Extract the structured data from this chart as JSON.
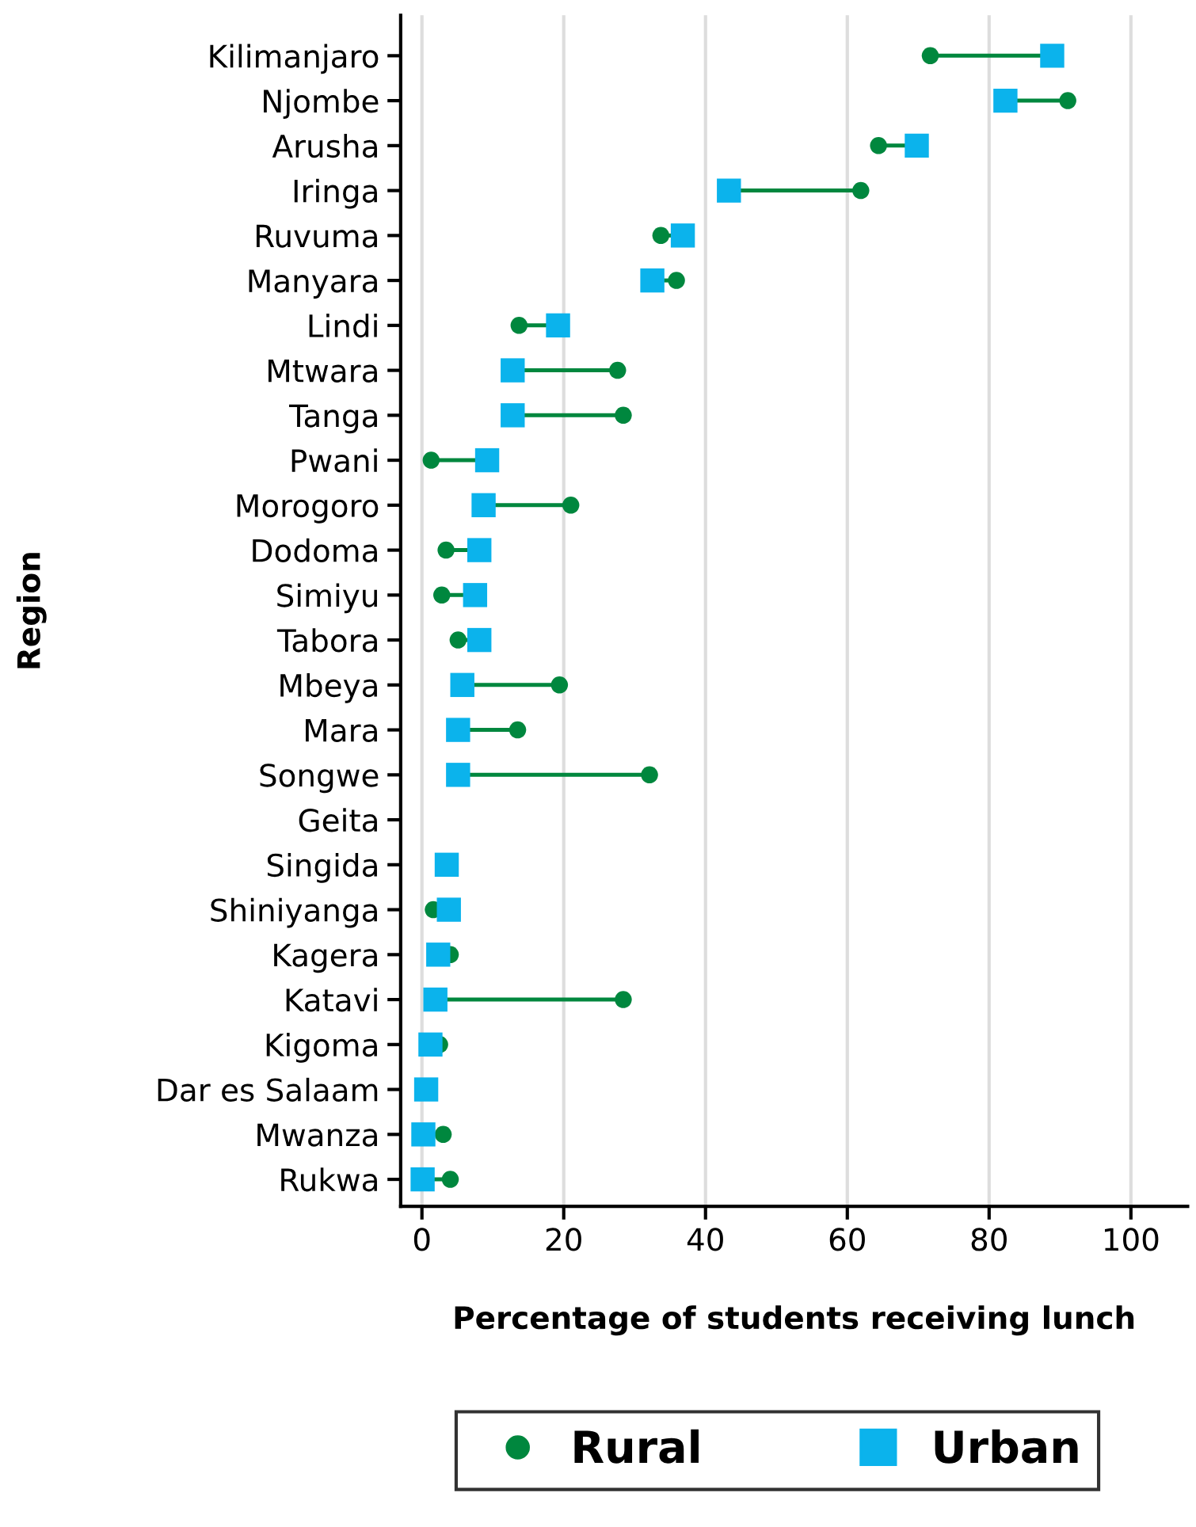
{
  "chart_data": {
    "type": "scatter",
    "orientation": "horizontal",
    "xlabel": "Percentage of students receiving lunch",
    "ylabel": "Region",
    "categories": [
      "Kilimanjaro",
      "Njombe",
      "Arusha",
      "Iringa",
      "Ruvuma",
      "Manyara",
      "Lindi",
      "Mtwara",
      "Tanga",
      "Pwani",
      "Morogoro",
      "Dodoma",
      "Simiyu",
      "Tabora",
      "Mbeya",
      "Mara",
      "Songwe",
      "Geita",
      "Singida",
      "Shiniyanga",
      "Kagera",
      "Katavi",
      "Kigoma",
      "Dar es Salaam",
      "Mwanza",
      "Rukwa"
    ],
    "series": [
      {
        "name": "Rural",
        "color": "#00873e",
        "marker": "circle",
        "values": [
          71.7,
          91.1,
          64.4,
          61.9,
          33.7,
          35.9,
          13.7,
          27.6,
          28.4,
          1.3,
          21.0,
          3.4,
          2.8,
          5.1,
          19.4,
          13.5,
          32.1,
          null,
          null,
          1.6,
          4.0,
          28.4,
          2.5,
          null,
          3.0,
          4.0
        ]
      },
      {
        "name": "Urban",
        "color": "#0bb3ec",
        "marker": "square",
        "values": [
          88.9,
          82.3,
          69.8,
          43.3,
          36.8,
          32.5,
          19.2,
          12.8,
          12.8,
          9.2,
          8.7,
          8.1,
          7.5,
          8.1,
          5.7,
          5.1,
          5.1,
          null,
          3.5,
          3.8,
          2.3,
          1.9,
          1.2,
          0.6,
          0.2,
          0.1
        ]
      }
    ],
    "xlim": [
      -3,
      108
    ],
    "xticks": [
      0,
      20,
      40,
      60,
      80,
      100
    ],
    "grid": "x",
    "legend": "bottom"
  }
}
